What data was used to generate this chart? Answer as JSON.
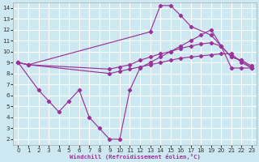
{
  "bg_color": "#cde8f0",
  "grid_color": "#ffffff",
  "line_color": "#993399",
  "xlabel": "Windchill (Refroidissement éolien,°C)",
  "xlim_min": -0.5,
  "xlim_max": 23.5,
  "ylim_min": 1.5,
  "ylim_max": 14.5,
  "xticks": [
    0,
    1,
    2,
    3,
    4,
    5,
    6,
    7,
    8,
    9,
    10,
    11,
    12,
    13,
    14,
    15,
    16,
    17,
    18,
    19,
    20,
    21,
    22,
    23
  ],
  "yticks": [
    2,
    3,
    4,
    5,
    6,
    7,
    8,
    9,
    10,
    11,
    12,
    13,
    14
  ],
  "series": [
    {
      "x": [
        0,
        1,
        13,
        14,
        15,
        16,
        17,
        19,
        20,
        21,
        22,
        23
      ],
      "y": [
        9.0,
        8.8,
        11.8,
        14.2,
        14.2,
        13.3,
        12.3,
        11.5,
        10.5,
        9.5,
        9.2,
        8.7
      ]
    },
    {
      "x": [
        0,
        1,
        9,
        10,
        11,
        12,
        13,
        14,
        15,
        16,
        17,
        18,
        19,
        20,
        21,
        22,
        23
      ],
      "y": [
        9.0,
        8.8,
        8.4,
        8.6,
        8.8,
        9.2,
        9.5,
        9.8,
        10.0,
        10.3,
        10.5,
        10.7,
        10.8,
        10.5,
        9.5,
        9.2,
        8.5
      ]
    },
    {
      "x": [
        0,
        1,
        9,
        10,
        11,
        12,
        13,
        14,
        15,
        16,
        17,
        18,
        19,
        20,
        21,
        22,
        23
      ],
      "y": [
        9.0,
        8.8,
        8.0,
        8.2,
        8.4,
        8.6,
        8.8,
        9.0,
        9.2,
        9.4,
        9.5,
        9.6,
        9.7,
        9.8,
        9.8,
        9.0,
        8.5
      ]
    },
    {
      "x": [
        0,
        2,
        3,
        4,
        5,
        6,
        7,
        8,
        9,
        10,
        11,
        12,
        13,
        14,
        15,
        16,
        17,
        18,
        19,
        20,
        21,
        22,
        23
      ],
      "y": [
        9.0,
        6.5,
        5.5,
        4.5,
        5.5,
        6.5,
        4.0,
        3.0,
        2.0,
        2.0,
        6.5,
        8.5,
        9.0,
        9.5,
        10.0,
        10.5,
        11.0,
        11.5,
        12.0,
        10.5,
        8.5,
        8.5,
        8.5
      ]
    }
  ]
}
